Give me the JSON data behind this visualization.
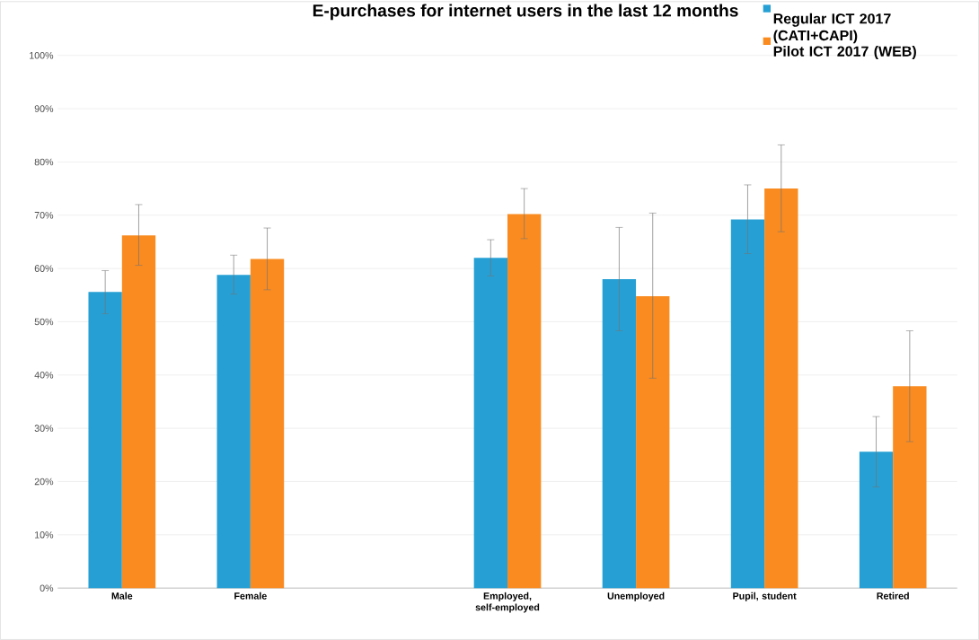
{
  "chart_data": {
    "type": "bar",
    "title": "E-purchases for internet users in the last 12 months",
    "categories": [
      "Male",
      "Female",
      null,
      "Employed, self-employed",
      "Unemployed",
      "Pupil, student",
      "Retired"
    ],
    "series": [
      {
        "name": "Regular ICT 2017 (CATI+CAPI)",
        "color": "#26a0d4",
        "values": [
          55.6,
          58.8,
          null,
          62.0,
          58.0,
          69.2,
          25.6
        ],
        "errors": [
          [
            51.5,
            59.6
          ],
          [
            55.2,
            62.5
          ],
          null,
          [
            58.6,
            65.4
          ],
          [
            48.3,
            67.7
          ],
          [
            62.8,
            75.7
          ],
          [
            19.0,
            32.2
          ]
        ]
      },
      {
        "name": "Pilot ICT 2017 (WEB)",
        "color": "#f98b20",
        "values": [
          66.2,
          61.8,
          null,
          70.2,
          54.8,
          75.0,
          37.9
        ],
        "errors": [
          [
            60.6,
            72.0
          ],
          [
            56.0,
            67.6
          ],
          null,
          [
            65.6,
            75.0
          ],
          [
            39.4,
            70.4
          ],
          [
            66.9,
            83.2
          ],
          [
            27.5,
            48.3
          ]
        ]
      }
    ],
    "ylim": [
      0,
      100
    ],
    "yticks": [
      {
        "value": 0,
        "label": "0%"
      },
      {
        "value": 10,
        "label": "10%"
      },
      {
        "value": 20,
        "label": "20%"
      },
      {
        "value": 30,
        "label": "30%"
      },
      {
        "value": 40,
        "label": "40%"
      },
      {
        "value": 50,
        "label": "50%"
      },
      {
        "value": 60,
        "label": "60%"
      },
      {
        "value": 70,
        "label": "70%"
      },
      {
        "value": 80,
        "label": "80%"
      },
      {
        "value": 90,
        "label": "90%"
      },
      {
        "value": 100,
        "label": "100%"
      }
    ],
    "grid": "y",
    "legend": "top right"
  }
}
